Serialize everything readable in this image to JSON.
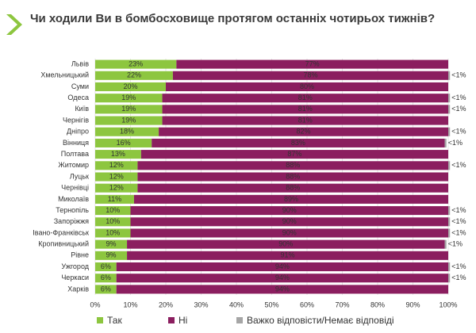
{
  "chart_data": {
    "type": "stacked-bar-horizontal",
    "title": "Чи ходили Ви в бомбосховище протягом останніх чотирьох тижнів?",
    "categories": [
      "Львів",
      "Хмельницький",
      "Суми",
      "Одеса",
      "Київ",
      "Чернігів",
      "Дніпро",
      "Вінниця",
      "Полтава",
      "Житомир",
      "Луцьк",
      "Чернівці",
      "Миколаїв",
      "Тернопіль",
      "Запоріжжя",
      "Івано-Франківськ",
      "Кропивницький",
      "Рівне",
      "Ужгород",
      "Черкаси",
      "Харків"
    ],
    "series": [
      {
        "name": "Так",
        "color": "#8dc63f",
        "values": [
          23,
          22,
          20,
          19,
          19,
          19,
          18,
          16,
          13,
          12,
          12,
          12,
          11,
          10,
          10,
          10,
          9,
          9,
          6,
          6,
          6
        ],
        "value_labels": [
          "23%",
          "22%",
          "20%",
          "19%",
          "19%",
          "19%",
          "18%",
          "16%",
          "13%",
          "12%",
          "12%",
          "12%",
          "11%",
          "10%",
          "10%",
          "10%",
          "9%",
          "9%",
          "6%",
          "6%",
          "6%"
        ]
      },
      {
        "name": "Ні",
        "color": "#8b1e5f",
        "values": [
          77,
          78,
          80,
          81,
          81,
          81,
          82,
          83,
          87,
          88,
          88,
          88,
          89,
          90,
          90,
          90,
          90,
          91,
          94,
          94,
          94
        ],
        "value_labels": [
          "77%",
          "78%",
          "80%",
          "81%",
          "81%",
          "81%",
          "82%",
          "83%",
          "87%",
          "88%",
          "88%",
          "88%",
          "89%",
          "90%",
          "90%",
          "90%",
          "90%",
          "91%",
          "94%",
          "94%",
          "94%"
        ]
      },
      {
        "name": "Важко відповісти/Немає відповіді",
        "color": "#a6a6a6",
        "values": [
          null,
          0.5,
          null,
          0.5,
          0.5,
          null,
          0.5,
          0.5,
          null,
          0.5,
          null,
          null,
          null,
          0.5,
          0.5,
          0.5,
          0.5,
          null,
          0.5,
          0.5,
          null
        ],
        "value_labels": [
          null,
          "<1%",
          null,
          "<1%",
          "<1%",
          null,
          "<1%",
          "<1%",
          null,
          "<1%",
          null,
          null,
          null,
          "<1%",
          "<1%",
          "<1%",
          "<1%",
          null,
          "<1%",
          "<1%",
          null
        ]
      }
    ],
    "xlim": [
      0,
      100
    ],
    "xticks": [
      {
        "value": 0,
        "label": "0%"
      },
      {
        "value": 10,
        "label": "10%"
      },
      {
        "value": 20,
        "label": "20%"
      },
      {
        "value": 30,
        "label": "30%"
      },
      {
        "value": 40,
        "label": "40%"
      },
      {
        "value": 50,
        "label": "50%"
      },
      {
        "value": 60,
        "label": "60%"
      },
      {
        "value": 70,
        "label": "70%"
      },
      {
        "value": 80,
        "label": "80%"
      },
      {
        "value": 90,
        "label": "90%"
      },
      {
        "value": 100,
        "label": "100%"
      }
    ],
    "grid": true
  }
}
